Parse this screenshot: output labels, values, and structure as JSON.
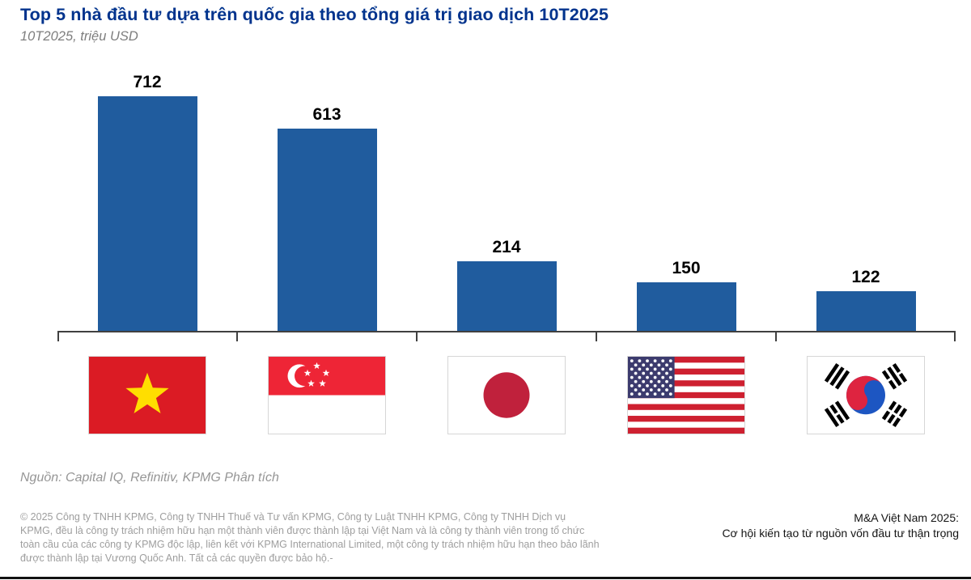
{
  "header": {
    "title": "Top 5 nhà đầu tư dựa trên quốc gia theo tổng giá trị giao dịch 10T2025",
    "subtitle": "10T2025, triệu USD"
  },
  "chart_data": {
    "type": "bar",
    "title": "Top 5 nhà đầu tư dựa trên quốc gia theo tổng giá trị giao dịch 10T2025",
    "subtitle": "10T2025, triệu USD",
    "unit": "triệu USD",
    "categories": [
      "Việt Nam",
      "Singapore",
      "Nhật Bản",
      "Hoa Kỳ",
      "Hàn Quốc"
    ],
    "category_icons": [
      "vietnam-flag-icon",
      "singapore-flag-icon",
      "japan-flag-icon",
      "usa-flag-icon",
      "south-korea-flag-icon"
    ],
    "values": [
      712,
      613,
      214,
      150,
      122
    ],
    "value_labels": [
      "712",
      "613",
      "214",
      "150",
      "122"
    ],
    "xlabel": "",
    "ylabel": "",
    "ylim": [
      0,
      750
    ],
    "grid": false,
    "legend": false,
    "bar_color": "#205C9E"
  },
  "source": {
    "text": "Nguồn: Capital IQ, Refinitiv, KPMG Phân tích"
  },
  "footer": {
    "copyright_lines": [
      "© 2025 Công ty TNHH KPMG, Công ty TNHH Thuế và Tư vấn KPMG, Công ty Luật TNHH KPMG, Công ty TNHH Dịch vụ",
      "KPMG, đều là công ty trách nhiệm hữu hạn một thành viên được thành lập tại Việt Nam và là công ty thành viên trong tổ chức",
      "toàn cầu của các công ty KPMG độc lập, liên kết với KPMG International Limited, một công ty trách nhiệm hữu hạn theo bảo lãnh",
      "được thành lập tại Vương Quốc Anh. Tất cả các quyền được bảo hộ.-"
    ],
    "right_line1": "M&A Việt Nam 2025:",
    "right_line2": "Cơ hội kiến tạo từ nguồn vốn đầu tư thận trọng"
  },
  "colors": {
    "title_blue": "#00338D",
    "bar_blue": "#205C9E"
  }
}
